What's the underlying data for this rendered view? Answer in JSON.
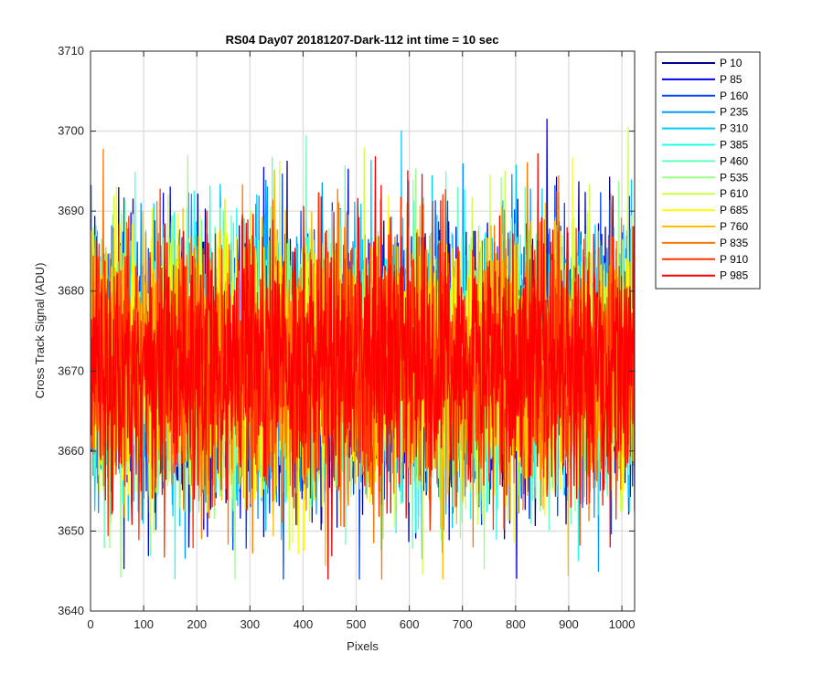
{
  "chart_data": {
    "type": "line",
    "title": "RS04 Day07 20181207-Dark-112 int time = 10 sec",
    "xlabel": "Pixels",
    "ylabel": "Cross Track Signal (ADU)",
    "xlim": [
      0,
      1024
    ],
    "ylim": [
      3640,
      3710
    ],
    "xticks": [
      0,
      100,
      200,
      300,
      400,
      500,
      600,
      700,
      800,
      900,
      1000
    ],
    "yticks": [
      3640,
      3650,
      3660,
      3670,
      3680,
      3690,
      3700,
      3710
    ],
    "grid": true,
    "legend_position": "outside-top-right",
    "noise_model": {
      "mean": 3671,
      "std": 8,
      "n_points": 1024,
      "description_note": "each series is pixel-to-pixel noise around the mean"
    },
    "series": [
      {
        "name": "P 10",
        "color": "#00008f"
      },
      {
        "name": "P 85",
        "color": "#0000ea"
      },
      {
        "name": "P 160",
        "color": "#0044ff"
      },
      {
        "name": "P 235",
        "color": "#0099ff"
      },
      {
        "name": "P 310",
        "color": "#00ccff"
      },
      {
        "name": "P 385",
        "color": "#22ffee"
      },
      {
        "name": "P 460",
        "color": "#66ffbb"
      },
      {
        "name": "P 535",
        "color": "#99ff88"
      },
      {
        "name": "P 610",
        "color": "#ccff44"
      },
      {
        "name": "P 685",
        "color": "#ffff00"
      },
      {
        "name": "P 760",
        "color": "#ffbb00"
      },
      {
        "name": "P 835",
        "color": "#ff7700"
      },
      {
        "name": "P 910",
        "color": "#ff3300"
      },
      {
        "name": "P 985",
        "color": "#ff0000"
      }
    ]
  }
}
